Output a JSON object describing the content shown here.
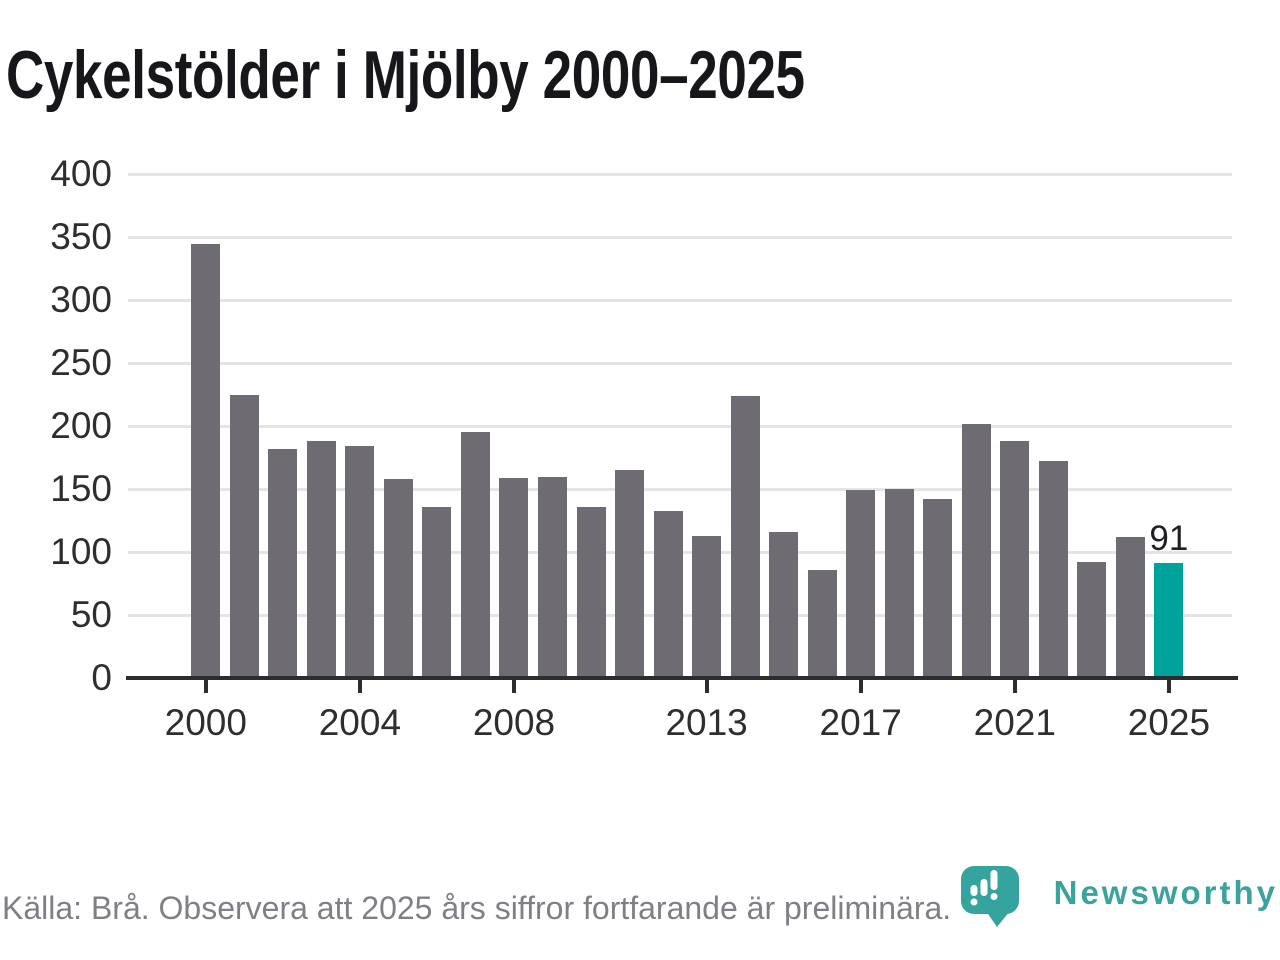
{
  "title": "Cykelstölder i Mjölby 2000–2025",
  "colors": {
    "bar": "#6e6b72",
    "highlight_bar": "#00a39b",
    "grid": "#e4e4e6",
    "axis": "#2d2d31",
    "title_text": "#17171b",
    "tick_label_text": "#2e2e2e",
    "annotation_text": "#202024",
    "footer_text": "#807f86",
    "logo_teal": "#3aa39d"
  },
  "chart_data": {
    "type": "bar",
    "title": "Cykelstölder i Mjölby 2000–2025",
    "x": [
      2000,
      2001,
      2002,
      2003,
      2004,
      2005,
      2006,
      2007,
      2008,
      2009,
      2010,
      2011,
      2012,
      2013,
      2014,
      2015,
      2016,
      2017,
      2018,
      2019,
      2020,
      2021,
      2022,
      2023,
      2024,
      2025
    ],
    "values": [
      345,
      225,
      182,
      188,
      184,
      158,
      136,
      195,
      159,
      160,
      136,
      165,
      133,
      113,
      224,
      116,
      86,
      149,
      150,
      142,
      202,
      188,
      172,
      92,
      112,
      91
    ],
    "bar_color": "#6e6b72",
    "highlight": {
      "year": 2025,
      "value": 91,
      "label": "91",
      "color": "#00a39b"
    },
    "ylim": [
      0,
      400
    ],
    "yticks": [
      0,
      50,
      100,
      150,
      200,
      250,
      300,
      350,
      400
    ],
    "xticks": [
      2000,
      2004,
      2008,
      2013,
      2017,
      2021,
      2025
    ],
    "grid": true,
    "legend": null,
    "xlabel": "",
    "ylabel": ""
  },
  "footer": {
    "source": "Källa: Brå. Observera att 2025 års siffror fortfarande är preliminära.",
    "logo": {
      "text": "Newsworthy",
      "icon": "newsworthy-pin-barchart-icon"
    }
  }
}
